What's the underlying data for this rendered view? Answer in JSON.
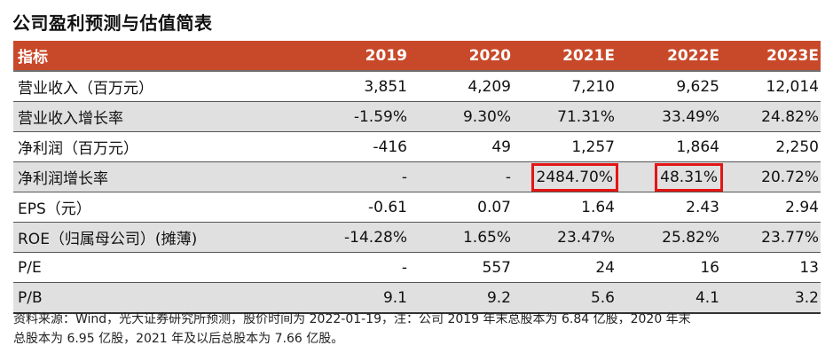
{
  "title": "公司盈利预测与估值简表",
  "table": {
    "columns": [
      "指标",
      "2019",
      "2020",
      "2021E",
      "2022E",
      "2023E"
    ],
    "rows": [
      {
        "label": "营业收入（百万元）",
        "values": [
          "3,851",
          "4,209",
          "7,210",
          "9,625",
          "12,014"
        ]
      },
      {
        "label": "营业收入增长率",
        "values": [
          "-1.59%",
          "9.30%",
          "71.31%",
          "33.49%",
          "24.82%"
        ]
      },
      {
        "label": "净利润（百万元）",
        "values": [
          "-416",
          "49",
          "1,257",
          "1,864",
          "2,250"
        ]
      },
      {
        "label": "净利润增长率",
        "values": [
          "-",
          "-",
          "2484.70%",
          "48.31%",
          "20.72%"
        ]
      },
      {
        "label": "EPS（元）",
        "values": [
          "-0.61",
          "0.07",
          "1.64",
          "2.43",
          "2.94"
        ]
      },
      {
        "label": "ROE（归属母公司）(摊薄)",
        "values": [
          "-14.28%",
          "1.65%",
          "23.47%",
          "25.82%",
          "23.77%"
        ]
      },
      {
        "label": "P/E",
        "values": [
          "-",
          "557",
          "24",
          "16",
          "13"
        ]
      },
      {
        "label": "P/B",
        "values": [
          "9.1",
          "9.2",
          "5.6",
          "4.1",
          "3.2"
        ]
      }
    ],
    "colors": {
      "header_bg": "#c8492a",
      "shade_bg": "#e0e0e0",
      "highlight": "#e31515"
    }
  },
  "note": {
    "line1": "资料来源：Wind，光大证券研究所预测，股价时间为 2022-01-19，注：公司 2019 年末总股本为 6.84 亿股，2020 年末",
    "line2": "总股本为 6.95 亿股，2021 年及以后总股本为 7.66 亿股。"
  }
}
